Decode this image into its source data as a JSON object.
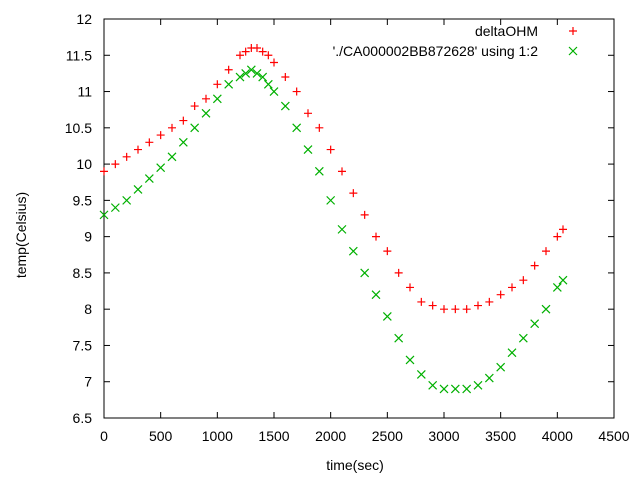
{
  "chart_data": {
    "type": "scatter",
    "title": "",
    "xlabel": "time(sec)",
    "ylabel": "temp(Celsius)",
    "xlim": [
      0,
      4500
    ],
    "ylim": [
      6.5,
      12
    ],
    "xticks": [
      0,
      500,
      1000,
      1500,
      2000,
      2500,
      3000,
      3500,
      4000,
      4500
    ],
    "yticks": [
      6.5,
      7,
      7.5,
      8,
      8.5,
      9,
      9.5,
      10,
      10.5,
      11,
      11.5,
      12
    ],
    "ytick_labels": [
      "6.5",
      "7",
      "7.5",
      "8",
      "8.5",
      "9",
      "9.5",
      "10",
      "10.5",
      "11",
      "11.5",
      "12"
    ],
    "grid": false,
    "legend_position": "top-right",
    "series": [
      {
        "name": "deltaOHM",
        "marker": "plus",
        "color": "#ff0000",
        "x": [
          0,
          100,
          200,
          300,
          400,
          500,
          600,
          700,
          800,
          900,
          1000,
          1100,
          1200,
          1250,
          1300,
          1350,
          1400,
          1450,
          1500,
          1600,
          1700,
          1800,
          1900,
          2000,
          2100,
          2200,
          2300,
          2400,
          2500,
          2600,
          2700,
          2800,
          2900,
          3000,
          3100,
          3200,
          3300,
          3400,
          3500,
          3600,
          3700,
          3800,
          3900,
          4000,
          4050
        ],
        "y": [
          9.9,
          10.0,
          10.1,
          10.2,
          10.3,
          10.4,
          10.5,
          10.6,
          10.8,
          10.9,
          11.1,
          11.3,
          11.5,
          11.55,
          11.6,
          11.6,
          11.55,
          11.5,
          11.4,
          11.2,
          11.0,
          10.7,
          10.5,
          10.2,
          9.9,
          9.6,
          9.3,
          9.0,
          8.8,
          8.5,
          8.3,
          8.1,
          8.05,
          8.0,
          8.0,
          8.0,
          8.05,
          8.1,
          8.2,
          8.3,
          8.4,
          8.6,
          8.8,
          9.0,
          9.1
        ]
      },
      {
        "name": "'./CA000002BB872628' using 1:2",
        "marker": "cross",
        "color": "#00b000",
        "x": [
          0,
          100,
          200,
          300,
          400,
          500,
          600,
          700,
          800,
          900,
          1000,
          1100,
          1200,
          1250,
          1300,
          1350,
          1400,
          1450,
          1500,
          1600,
          1700,
          1800,
          1900,
          2000,
          2100,
          2200,
          2300,
          2400,
          2500,
          2600,
          2700,
          2800,
          2900,
          3000,
          3100,
          3200,
          3300,
          3400,
          3500,
          3600,
          3700,
          3800,
          3900,
          4000,
          4050
        ],
        "y": [
          9.3,
          9.4,
          9.5,
          9.65,
          9.8,
          9.95,
          10.1,
          10.3,
          10.5,
          10.7,
          10.9,
          11.1,
          11.2,
          11.25,
          11.3,
          11.25,
          11.2,
          11.1,
          11.0,
          10.8,
          10.5,
          10.2,
          9.9,
          9.5,
          9.1,
          8.8,
          8.5,
          8.2,
          7.9,
          7.6,
          7.3,
          7.1,
          6.95,
          6.9,
          6.9,
          6.9,
          6.95,
          7.05,
          7.2,
          7.4,
          7.6,
          7.8,
          8.0,
          8.3,
          8.4
        ]
      }
    ]
  }
}
